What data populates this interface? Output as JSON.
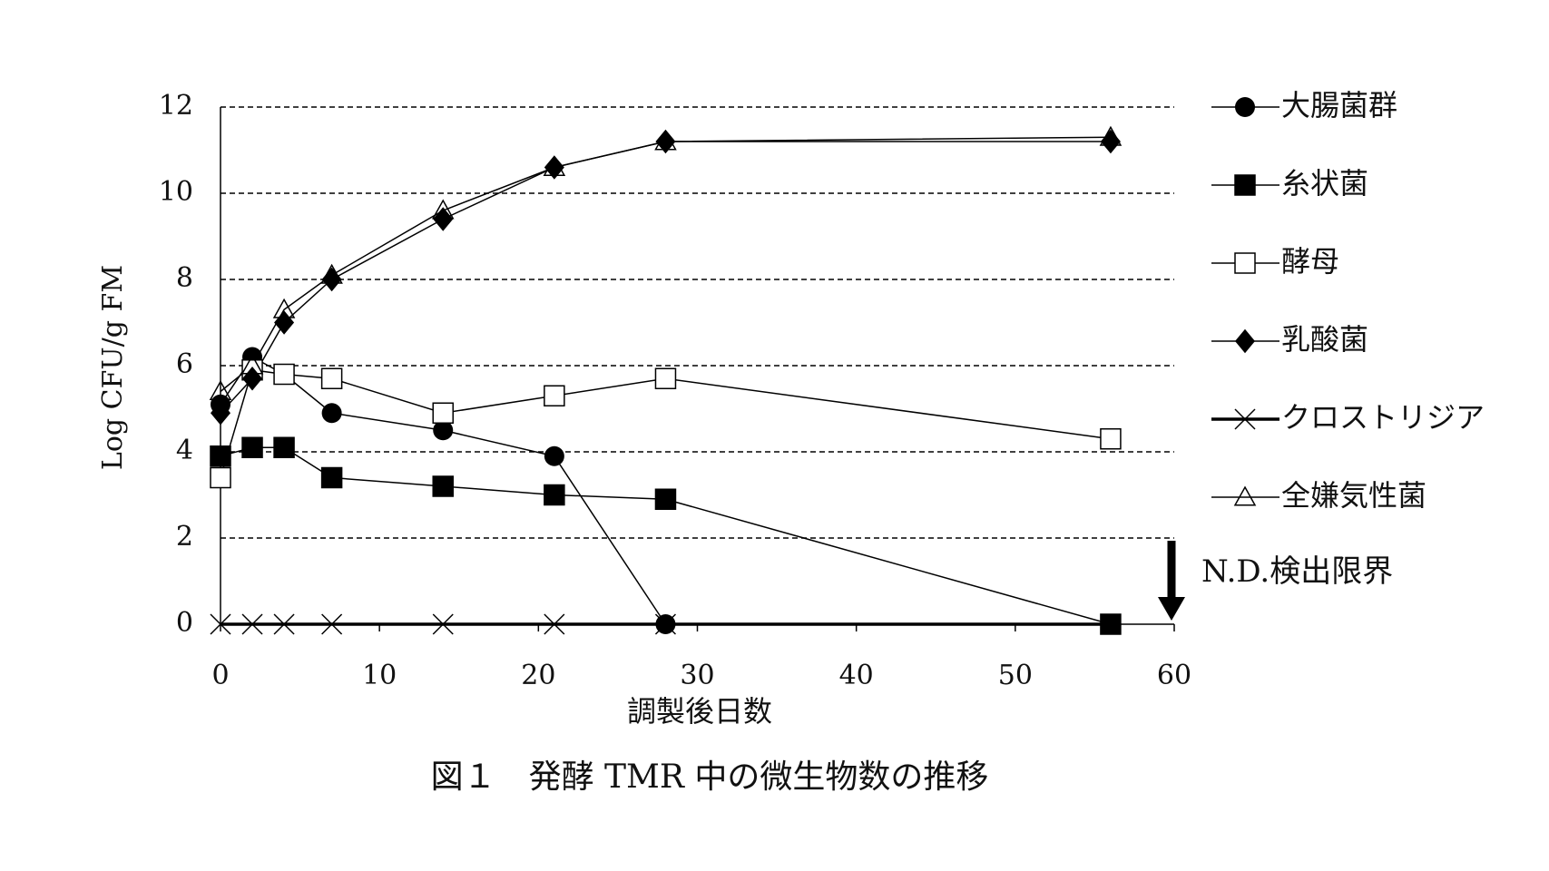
{
  "chart_data": {
    "type": "line",
    "x_label": "調製後日数",
    "y_label": "Log CFU/g FM",
    "caption": "図１　発酵 TMR 中の微生物数の推移",
    "annotation": "N.D.検出限界",
    "x": [
      0,
      2,
      4,
      7,
      14,
      21,
      28,
      56
    ],
    "xlim": [
      0,
      60
    ],
    "xticks": [
      0,
      10,
      20,
      30,
      40,
      50,
      60
    ],
    "ylim": [
      0,
      12
    ],
    "yticks": [
      0,
      2,
      4,
      6,
      8,
      10,
      12
    ],
    "grid": true,
    "series": [
      {
        "name": "大腸菌群",
        "color": "#000000",
        "marker": "circle",
        "line_width": 1.5,
        "values": [
          5.1,
          6.2,
          5.8,
          4.9,
          4.5,
          3.9,
          0,
          null
        ]
      },
      {
        "name": "糸状菌",
        "color": "#000000",
        "marker": "square",
        "line_width": 1.5,
        "values": [
          3.9,
          4.1,
          4.1,
          3.4,
          3.2,
          3.0,
          2.9,
          0
        ]
      },
      {
        "name": "酵母",
        "color": "#000000",
        "marker": "open-square",
        "line_width": 1.5,
        "values": [
          3.4,
          5.9,
          5.8,
          5.7,
          4.9,
          5.3,
          5.7,
          4.3
        ]
      },
      {
        "name": "乳酸菌",
        "color": "#000000",
        "marker": "diamond",
        "line_width": 1.5,
        "values": [
          4.9,
          5.7,
          7.0,
          8.0,
          9.4,
          10.6,
          11.2,
          11.2
        ]
      },
      {
        "name": "クロストリジア",
        "color": "#000000",
        "marker": "x",
        "line_width": 3.5,
        "values": [
          0,
          0,
          0,
          0,
          0,
          0,
          0,
          0
        ]
      },
      {
        "name": "全嫌気性菌",
        "color": "#000000",
        "marker": "triangle",
        "line_width": 1.5,
        "values": [
          5.4,
          6.0,
          7.3,
          8.1,
          9.6,
          10.6,
          11.2,
          11.3
        ]
      }
    ]
  }
}
